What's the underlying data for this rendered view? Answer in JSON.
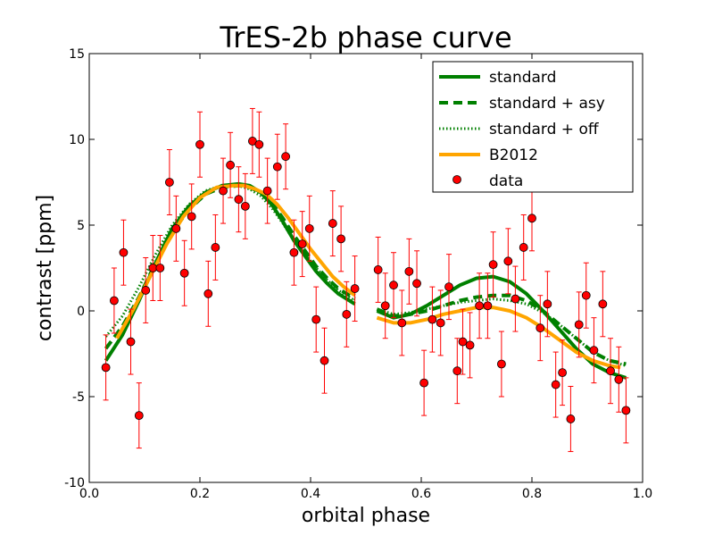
{
  "chart_data": {
    "type": "scatter",
    "title": "TrES-2b phase curve",
    "xlabel": "orbital phase",
    "ylabel": "contrast [ppm]",
    "xlim": [
      0.0,
      1.0
    ],
    "ylim": [
      -10,
      15
    ],
    "xticks": [
      0.0,
      0.2,
      0.4,
      0.6,
      0.8,
      1.0
    ],
    "xtick_labels": [
      "0.0",
      "0.2",
      "0.4",
      "0.6",
      "0.8",
      "1.0"
    ],
    "yticks": [
      -10,
      -5,
      0,
      5,
      10,
      15
    ],
    "ytick_labels": [
      "-10",
      "-5",
      "0",
      "5",
      "10",
      "15"
    ],
    "grid": false,
    "legend_position": "top-right",
    "colors": {
      "green": "#008000",
      "orange": "#FFA500",
      "red": "#FF0000"
    },
    "series": [
      {
        "name": "standard",
        "style": "solid",
        "color": "#008000",
        "segments": [
          {
            "x": [
              0.03,
              0.06,
              0.09,
              0.12,
              0.15,
              0.18,
              0.21,
              0.24,
              0.27,
              0.29,
              0.31,
              0.33,
              0.35,
              0.37,
              0.39,
              0.41,
              0.43,
              0.45,
              0.48
            ],
            "y": [
              -2.9,
              -1.4,
              0.6,
              2.8,
              4.8,
              6.1,
              6.9,
              7.3,
              7.4,
              7.3,
              6.9,
              6.2,
              5.2,
              4.1,
              3.2,
              2.3,
              1.6,
              1.0,
              0.4
            ]
          },
          {
            "x": [
              0.52,
              0.55,
              0.58,
              0.61,
              0.64,
              0.67,
              0.7,
              0.73,
              0.76,
              0.79,
              0.82,
              0.85,
              0.88,
              0.91,
              0.94,
              0.97
            ],
            "y": [
              0.0,
              -0.4,
              -0.2,
              0.3,
              0.9,
              1.5,
              1.9,
              2.0,
              1.7,
              1.0,
              0.0,
              -1.1,
              -2.2,
              -3.1,
              -3.6,
              -3.9
            ]
          }
        ]
      },
      {
        "name": "standard + asy",
        "style": "dashed",
        "color": "#008000",
        "segments": [
          {
            "x": [
              0.03,
              0.06,
              0.09,
              0.12,
              0.15,
              0.18,
              0.21,
              0.24,
              0.27,
              0.29,
              0.31,
              0.33,
              0.35,
              0.37,
              0.39,
              0.41,
              0.43,
              0.45,
              0.48
            ],
            "y": [
              -2.2,
              -0.9,
              0.8,
              2.8,
              4.6,
              5.9,
              6.8,
              7.2,
              7.3,
              7.2,
              6.9,
              6.3,
              5.4,
              4.4,
              3.5,
              2.6,
              1.9,
              1.3,
              0.7
            ]
          },
          {
            "x": [
              0.52,
              0.55,
              0.58,
              0.61,
              0.64,
              0.67,
              0.7,
              0.73,
              0.76,
              0.79,
              0.82,
              0.85,
              0.88,
              0.91,
              0.94,
              0.97
            ],
            "y": [
              0.1,
              -0.3,
              -0.2,
              0.0,
              0.3,
              0.6,
              0.8,
              0.9,
              0.9,
              0.6,
              0.0,
              -0.8,
              -1.6,
              -2.4,
              -2.9,
              -3.1
            ]
          }
        ]
      },
      {
        "name": "standard + off",
        "style": "dotted",
        "color": "#008000",
        "segments": [
          {
            "x": [
              0.03,
              0.06,
              0.09,
              0.12,
              0.15,
              0.18,
              0.21,
              0.24,
              0.27,
              0.29,
              0.31,
              0.33,
              0.35,
              0.37,
              0.39,
              0.41,
              0.43,
              0.45,
              0.48
            ],
            "y": [
              -1.5,
              -0.3,
              1.4,
              3.3,
              5.0,
              6.2,
              7.0,
              7.3,
              7.3,
              7.1,
              6.7,
              6.0,
              5.1,
              4.1,
              3.3,
              2.5,
              1.8,
              1.2,
              0.6
            ]
          },
          {
            "x": [
              0.52,
              0.55,
              0.58,
              0.61,
              0.64,
              0.67,
              0.7,
              0.73,
              0.76,
              0.79,
              0.82,
              0.85,
              0.88,
              0.91,
              0.94,
              0.97
            ],
            "y": [
              0.1,
              -0.2,
              -0.1,
              0.1,
              0.3,
              0.5,
              0.6,
              0.7,
              0.6,
              0.4,
              -0.1,
              -0.8,
              -1.6,
              -2.4,
              -2.9,
              -3.2
            ]
          }
        ]
      },
      {
        "name": "B2012",
        "style": "solid",
        "color": "#FFA500",
        "segments": [
          {
            "x": [
              0.05,
              0.08,
              0.11,
              0.14,
              0.17,
              0.2,
              0.23,
              0.26,
              0.28,
              0.3,
              0.32,
              0.34,
              0.36,
              0.38,
              0.4,
              0.42,
              0.44,
              0.46,
              0.48
            ],
            "y": [
              -1.6,
              0.1,
              2.0,
              3.9,
              5.5,
              6.6,
              7.2,
              7.3,
              7.3,
              7.1,
              6.8,
              6.2,
              5.4,
              4.5,
              3.6,
              2.8,
              2.0,
              1.4,
              0.9
            ]
          },
          {
            "x": [
              0.52,
              0.55,
              0.58,
              0.61,
              0.64,
              0.67,
              0.7,
              0.73,
              0.76,
              0.79,
              0.82,
              0.85,
              0.88,
              0.91,
              0.94,
              0.96
            ],
            "y": [
              -0.4,
              -0.7,
              -0.7,
              -0.5,
              -0.2,
              0.0,
              0.2,
              0.2,
              0.0,
              -0.4,
              -1.0,
              -1.7,
              -2.4,
              -2.9,
              -3.2,
              -3.3
            ]
          }
        ]
      }
    ],
    "data_points": {
      "name": "data",
      "color": "#FF0000",
      "error": 1.9,
      "x": [
        0.03,
        0.045,
        0.062,
        0.075,
        0.09,
        0.102,
        0.115,
        0.128,
        0.145,
        0.157,
        0.172,
        0.185,
        0.2,
        0.215,
        0.228,
        0.242,
        0.255,
        0.27,
        0.282,
        0.295,
        0.307,
        0.322,
        0.34,
        0.355,
        0.37,
        0.385,
        0.398,
        0.41,
        0.425,
        0.44,
        0.455,
        0.465,
        0.48,
        0.522,
        0.535,
        0.55,
        0.565,
        0.578,
        0.592,
        0.605,
        0.62,
        0.635,
        0.65,
        0.665,
        0.675,
        0.688,
        0.705,
        0.72,
        0.73,
        0.745,
        0.757,
        0.77,
        0.785,
        0.8,
        0.815,
        0.828,
        0.843,
        0.855,
        0.87,
        0.885,
        0.898,
        0.912,
        0.928,
        0.942,
        0.957,
        0.97
      ],
      "y": [
        -3.3,
        0.6,
        3.4,
        -1.8,
        -6.1,
        1.2,
        2.5,
        2.5,
        7.5,
        4.8,
        2.2,
        5.5,
        9.7,
        1.0,
        3.7,
        7.0,
        8.5,
        6.5,
        6.1,
        9.9,
        9.7,
        7.0,
        8.4,
        9.0,
        3.4,
        3.9,
        4.8,
        -0.5,
        -2.9,
        5.1,
        4.2,
        -0.2,
        1.3,
        2.4,
        0.3,
        1.5,
        -0.7,
        2.3,
        1.6,
        -4.2,
        -0.5,
        -0.7,
        1.4,
        -3.5,
        -1.8,
        -2.0,
        0.3,
        0.3,
        2.7,
        -3.1,
        2.9,
        0.7,
        3.7,
        5.4,
        -1.0,
        0.4,
        -4.3,
        -3.6,
        -6.3,
        -0.8,
        0.9,
        -2.3,
        0.4,
        -3.5,
        -4.0,
        -5.8
      ]
    }
  }
}
